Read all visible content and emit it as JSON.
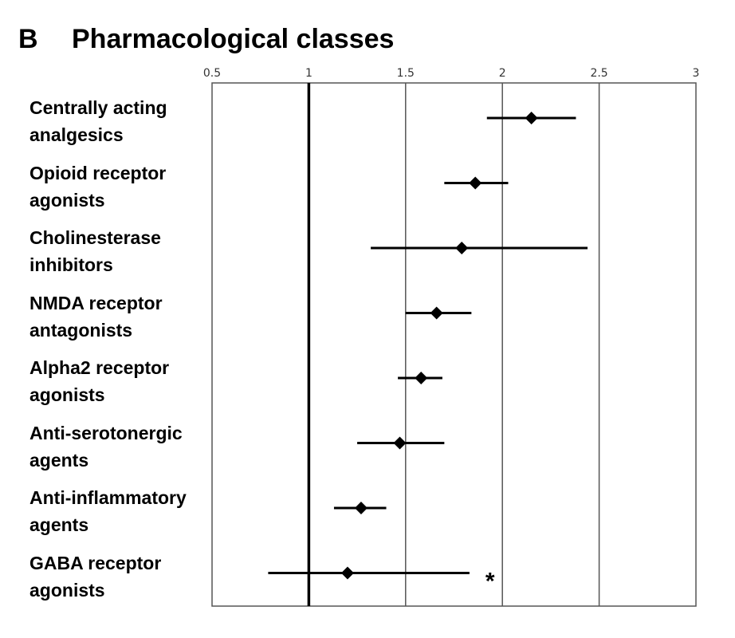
{
  "panel_label": "B",
  "title": "Pharmacological classes",
  "chart_data": {
    "type": "scatter",
    "title": "Pharmacological classes",
    "xlabel": "",
    "ylabel": "",
    "xlim": [
      0.5,
      3
    ],
    "x_ticks": [
      0.5,
      1,
      1.5,
      2,
      2.5,
      3
    ],
    "x_tick_labels": [
      "0.5",
      "1",
      "1.5",
      "2",
      "2.5",
      "3"
    ],
    "reference_line": 1,
    "grid": "vertical",
    "legend": "none",
    "categories": [
      {
        "line1": "Centrally acting",
        "line2": "analgesics",
        "estimate": 2.15,
        "lower": 1.92,
        "upper": 2.38,
        "annotation": ""
      },
      {
        "line1": "Opioid receptor",
        "line2": "agonists",
        "estimate": 1.86,
        "lower": 1.7,
        "upper": 2.03,
        "annotation": ""
      },
      {
        "line1": "Cholinesterase",
        "line2": "inhibitors",
        "estimate": 1.79,
        "lower": 1.32,
        "upper": 2.44,
        "annotation": ""
      },
      {
        "line1": "NMDA receptor",
        "line2": "antagonists",
        "estimate": 1.66,
        "lower": 1.5,
        "upper": 1.84,
        "annotation": ""
      },
      {
        "line1": "Alpha2 receptor",
        "line2": "agonists",
        "estimate": 1.58,
        "lower": 1.46,
        "upper": 1.69,
        "annotation": ""
      },
      {
        "line1": "Anti-serotonergic",
        "line2": "agents",
        "estimate": 1.47,
        "lower": 1.25,
        "upper": 1.7,
        "annotation": ""
      },
      {
        "line1": "Anti-inflammatory",
        "line2": "agents",
        "estimate": 1.27,
        "lower": 1.13,
        "upper": 1.4,
        "annotation": ""
      },
      {
        "line1": "GABA receptor",
        "line2": "agonists",
        "estimate": 1.2,
        "lower": 0.79,
        "upper": 1.83,
        "annotation": "*"
      }
    ],
    "colors": {
      "marker": "#000000",
      "whisker": "#000000",
      "gridline": "#555555",
      "reference_line": "#000000",
      "frame": "#555555"
    }
  }
}
